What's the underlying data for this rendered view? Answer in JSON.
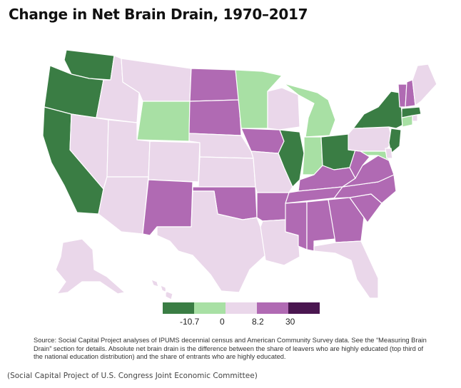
{
  "title": "Change in Net Brain Drain, 1970–2017",
  "legend": {
    "colors": [
      "#3a7d44",
      "#a8e0a4",
      "#ead7ea",
      "#b06ab3",
      "#4a1650"
    ],
    "labels": [
      "-10.7",
      "0",
      "8.2",
      "30"
    ]
  },
  "category_colors": {
    "gain_large": "#3a7d44",
    "gain_small": "#a8e0a4",
    "drain_small": "#ead7ea",
    "drain_large": "#b06ab3"
  },
  "states": {
    "WA": "gain_large",
    "OR": "gain_large",
    "CA": "gain_large",
    "ID": "drain_small",
    "NV": "drain_small",
    "MT": "drain_small",
    "WY": "gain_small",
    "UT": "drain_small",
    "AZ": "drain_small",
    "CO": "drain_small",
    "NM": "drain_large",
    "ND": "drain_large",
    "SD": "drain_large",
    "NE": "drain_small",
    "KS": "drain_small",
    "OK": "drain_large",
    "TX": "drain_small",
    "MN": "gain_small",
    "IA": "drain_large",
    "MO": "drain_small",
    "AR": "drain_large",
    "LA": "drain_small",
    "WI": "drain_small",
    "IL": "gain_large",
    "MI": "gain_small",
    "IN": "gain_small",
    "OH": "gain_large",
    "KY": "drain_large",
    "TN": "drain_large",
    "MS": "drain_large",
    "AL": "drain_large",
    "GA": "drain_large",
    "FL": "drain_small",
    "SC": "drain_large",
    "NC": "drain_large",
    "VA": "drain_large",
    "WV": "drain_large",
    "PA": "drain_small",
    "NY": "gain_large",
    "NJ": "gain_large",
    "MD": "gain_small",
    "DE": "drain_small",
    "CT": "gain_small",
    "RI": "drain_small",
    "MA": "gain_large",
    "VT": "drain_large",
    "NH": "drain_large",
    "ME": "drain_small",
    "AK": "drain_small",
    "HI": "drain_small"
  },
  "source": "Source: Social Capital Project analyses of IPUMS decennial census and American Community Survey data. See the “Measuring Brain Drain” section for details. Absolute net brain drain is the difference between the share of leavers who are highly educated (top third of the national education distribution) and the share of entrants who are highly educated.",
  "credit": "(Social Capital Project of U.S. Congress Joint Economic Committee)"
}
